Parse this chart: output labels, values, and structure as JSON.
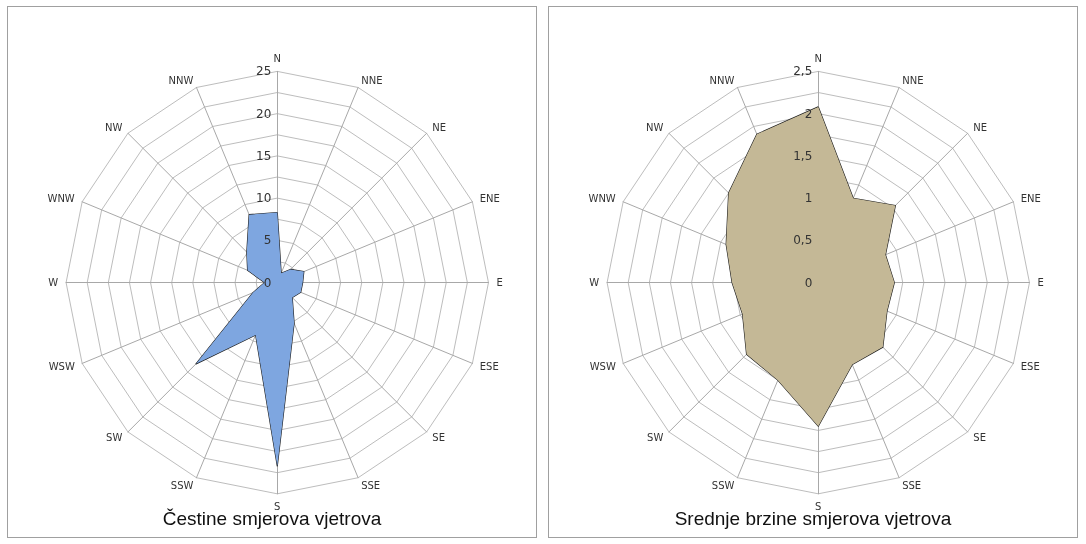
{
  "chart_data": [
    {
      "type": "radar",
      "title": "Čestine smjerova vjetrova",
      "categories": [
        "N",
        "NNE",
        "NE",
        "ENE",
        "E",
        "ESE",
        "SE",
        "SSE",
        "S",
        "SSW",
        "SW",
        "WSW",
        "W",
        "WNW",
        "NW",
        "NNW"
      ],
      "series": [
        {
          "color": "#7ea6e0",
          "values": [
            8.3,
            1.2,
            2.2,
            3.4,
            3.0,
            3.0,
            2.5,
            5.2,
            21.7,
            6.7,
            13.6,
            3.1,
            1.5,
            3.8,
            5.1,
            8.7
          ]
        }
      ],
      "ylim": [
        0,
        25
      ],
      "yticks": [
        0,
        5,
        10,
        15,
        20,
        25
      ],
      "grid": true,
      "marker": "none"
    },
    {
      "type": "radar",
      "title": "Srednje brzine smjerova vjetrova",
      "categories": [
        "N",
        "NNE",
        "NE",
        "ENE",
        "E",
        "ESE",
        "SE",
        "SSE",
        "S",
        "SSW",
        "SW",
        "WSW",
        "W",
        "WNW",
        "NW",
        "NNW"
      ],
      "series": [
        {
          "color": "#c4b896",
          "values": [
            2.08,
            1.08,
            1.29,
            0.86,
            0.9,
            0.88,
            1.08,
            1.05,
            1.7,
            1.25,
            1.2,
            0.97,
            1.02,
            1.18,
            1.5,
            1.9
          ]
        }
      ],
      "ylim": [
        0,
        2.5
      ],
      "yticks": [
        0,
        {
          "value": 0.5,
          "label": "0,5"
        },
        1,
        {
          "value": 1.5,
          "label": "1,5"
        },
        2,
        {
          "value": 2.5,
          "label": "2,5"
        }
      ],
      "grid": true,
      "marker": "none"
    }
  ]
}
